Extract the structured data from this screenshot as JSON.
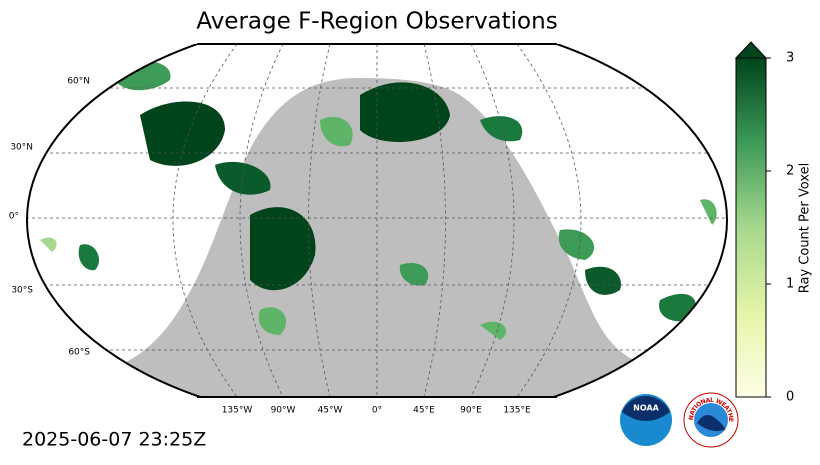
{
  "title": "Average F-Region Observations",
  "timestamp": "2025-06-07 23:25Z",
  "latitude_labels": [
    "60°N",
    "30°N",
    "0°",
    "30°S",
    "60°S"
  ],
  "longitude_labels": [
    "135°W",
    "90°W",
    "45°W",
    "0°",
    "45°E",
    "90°E",
    "135°E"
  ],
  "colorbar": {
    "label": "Ray Count Per Voxel",
    "lim": [
      0,
      3
    ],
    "ticks": [
      0,
      1,
      2,
      3
    ]
  },
  "logos": {
    "noaa": "NOAA",
    "nws": "NATIONAL WEATHER SERVICE"
  }
}
